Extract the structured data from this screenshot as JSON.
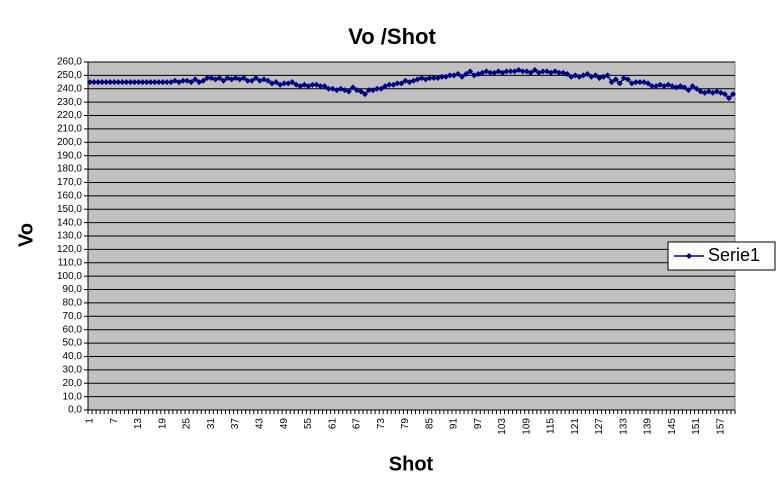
{
  "chart_data": {
    "type": "line",
    "title": "Vo /Shot",
    "x_label": "Shot",
    "y_label": "Vo",
    "categories": [
      1,
      null,
      null,
      null,
      null,
      null,
      7,
      null,
      null,
      null,
      null,
      null,
      13,
      null,
      null,
      null,
      null,
      null,
      19,
      null,
      null,
      null,
      null,
      null,
      25,
      null,
      null,
      null,
      null,
      null,
      31,
      null,
      null,
      null,
      null,
      null,
      37,
      null,
      null,
      null,
      null,
      null,
      43,
      null,
      null,
      null,
      null,
      null,
      49,
      null,
      null,
      null,
      null,
      null,
      55,
      null,
      null,
      null,
      null,
      null,
      61,
      null,
      null,
      null,
      null,
      null,
      67,
      null,
      null,
      null,
      null,
      null,
      73,
      null,
      null,
      null,
      null,
      null,
      79,
      null,
      null,
      null,
      null,
      null,
      85,
      null,
      null,
      null,
      null,
      null,
      91,
      null,
      null,
      null,
      null,
      null,
      97,
      null,
      null,
      null,
      null,
      null,
      103,
      null,
      null,
      null,
      null,
      null,
      109,
      null,
      null,
      null,
      null,
      null,
      115,
      null,
      null,
      null,
      null,
      null,
      121,
      null,
      null,
      null,
      null,
      null,
      127,
      null,
      null,
      null,
      null,
      null,
      133,
      null,
      null,
      null,
      null,
      null,
      139,
      null,
      null,
      null,
      null,
      null,
      145,
      null,
      null,
      null,
      null,
      null,
      151,
      null,
      null,
      null,
      null,
      null,
      157,
      null,
      null,
      null
    ],
    "series": [
      {
        "name": "Serie1",
        "color": "#000080",
        "values": [
          245,
          245,
          245,
          245,
          245,
          245,
          245,
          245,
          245,
          245,
          245,
          245,
          245,
          245,
          245,
          245,
          245,
          245,
          245,
          245,
          245,
          246,
          245,
          246,
          246,
          245,
          247,
          245,
          246,
          248,
          248,
          247,
          248,
          246,
          248,
          247,
          248,
          247,
          248,
          246,
          246,
          248,
          246,
          247,
          246,
          244,
          245,
          243,
          244,
          244,
          245,
          243,
          242,
          243,
          242,
          243,
          243,
          242,
          242,
          240,
          240,
          239,
          240,
          239,
          238,
          241,
          239,
          238,
          236,
          239,
          239,
          240,
          240,
          242,
          243,
          243,
          244,
          244,
          246,
          245,
          246,
          247,
          248,
          247,
          248,
          248,
          248,
          249,
          249,
          250,
          250,
          251,
          249,
          251,
          253,
          250,
          251,
          252,
          253,
          252,
          252,
          253,
          252,
          253,
          253,
          253,
          254,
          253,
          253,
          252,
          254,
          252,
          253,
          253,
          252,
          253,
          252,
          252,
          251,
          249,
          250,
          249,
          250,
          251,
          249,
          250,
          248,
          249,
          250,
          245,
          247,
          244,
          248,
          247,
          244,
          245,
          245,
          245,
          244,
          242,
          242,
          243,
          242,
          243,
          242,
          241,
          242,
          241,
          239,
          242,
          240,
          238,
          237,
          238,
          237,
          238,
          237,
          236,
          233,
          236
        ]
      }
    ],
    "ylim": [
      0,
      260
    ],
    "yticks": [
      {
        "value": 0,
        "label": "0,0"
      },
      {
        "value": 10,
        "label": "10,0"
      },
      {
        "value": 20,
        "label": "20,0"
      },
      {
        "value": 30,
        "label": "30,0"
      },
      {
        "value": 40,
        "label": "40,0"
      },
      {
        "value": 50,
        "label": "50,0"
      },
      {
        "value": 60,
        "label": "60,0"
      },
      {
        "value": 70,
        "label": "70,0"
      },
      {
        "value": 80,
        "label": "80,0"
      },
      {
        "value": 90,
        "label": "90,0"
      },
      {
        "value": 100,
        "label": "100,0"
      },
      {
        "value": 110,
        "label": "110,0"
      },
      {
        "value": 120,
        "label": "120,0"
      },
      {
        "value": 130,
        "label": "130,0"
      },
      {
        "value": 140,
        "label": "140,0"
      },
      {
        "value": 150,
        "label": "150,0"
      },
      {
        "value": 160,
        "label": "160,0"
      },
      {
        "value": 170,
        "label": "170,0"
      },
      {
        "value": 180,
        "label": "180,0"
      },
      {
        "value": 190,
        "label": "190,0"
      },
      {
        "value": 200,
        "label": "200,0"
      },
      {
        "value": 210,
        "label": "210,0"
      },
      {
        "value": 220,
        "label": "220,0"
      },
      {
        "value": 230,
        "label": "230,0"
      },
      {
        "value": 240,
        "label": "240,0"
      },
      {
        "value": 250,
        "label": "250,0"
      },
      {
        "value": 260,
        "label": "260,0"
      }
    ],
    "grid": true,
    "legend": "right",
    "plot_background": "#c0c0c0"
  }
}
